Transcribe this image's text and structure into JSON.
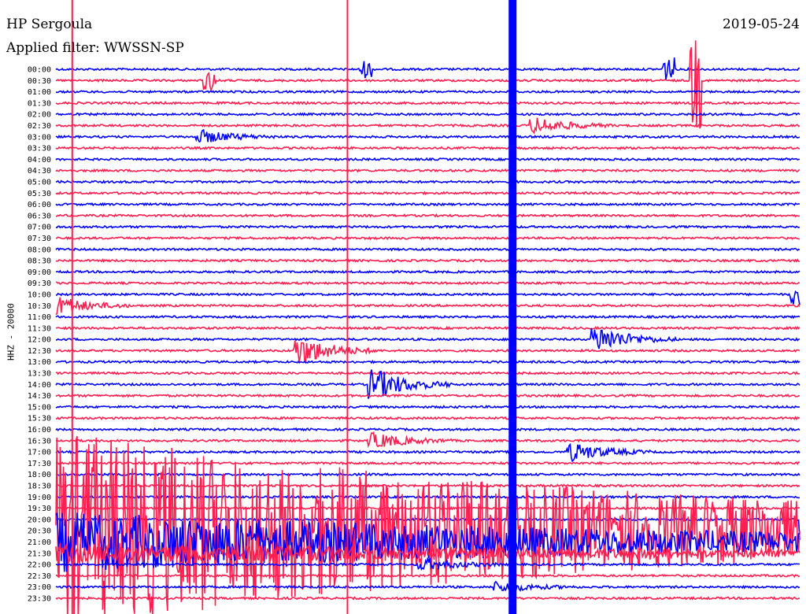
{
  "header": {
    "station": "HP Sergoula",
    "date": "2019-05-24",
    "filter": "Applied filter: WWSSN-SP"
  },
  "chart_data": {
    "type": "line",
    "title": "HP Sergoula",
    "subtitle": "Applied filter: WWSSN-SP",
    "date": "2019-05-24",
    "ylabel": "HHZ - 20000",
    "xlabel": "",
    "rows": [
      "00:00",
      "00:30",
      "01:00",
      "01:30",
      "02:00",
      "02:30",
      "03:00",
      "03:30",
      "04:00",
      "04:30",
      "05:00",
      "05:30",
      "06:00",
      "06:30",
      "07:00",
      "07:30",
      "08:00",
      "08:30",
      "09:00",
      "09:30",
      "10:00",
      "10:30",
      "11:00",
      "11:30",
      "12:00",
      "12:30",
      "13:00",
      "13:30",
      "14:00",
      "14:30",
      "15:00",
      "15:30",
      "16:00",
      "16:30",
      "17:00",
      "17:30",
      "18:00",
      "18:30",
      "19:00",
      "19:30",
      "20:00",
      "20:30",
      "21:00",
      "21:30",
      "22:00",
      "22:30",
      "23:00",
      "23:30"
    ],
    "trace_colors": [
      "#0000ff",
      "#ff1e50"
    ],
    "row_minutes": 30,
    "events": [
      {
        "minute": 12.5,
        "amp": 1.0,
        "kind": "spike"
      },
      {
        "minute": 24.7,
        "amp": 1.4,
        "kind": "spike"
      },
      {
        "minute": 36.2,
        "amp": 1.2,
        "kind": "spike"
      },
      {
        "minute": 55.8,
        "amp": 6.0,
        "kind": "spike"
      },
      {
        "minute": 169.5,
        "amp": 3.0,
        "kind": "burst"
      },
      {
        "minute": 186.0,
        "amp": 2.5,
        "kind": "burst"
      },
      {
        "minute": 630.0,
        "amp": 4.0,
        "kind": "burst"
      },
      {
        "minute": 742.0,
        "amp": 5.0,
        "kind": "burst"
      },
      {
        "minute": 760.0,
        "amp": 5.5,
        "kind": "burst"
      },
      {
        "minute": 853.0,
        "amp": 6.0,
        "kind": "burst"
      },
      {
        "minute": 1003.0,
        "amp": 3.0,
        "kind": "burst"
      },
      {
        "minute": 1041.0,
        "amp": 3.5,
        "kind": "burst"
      },
      {
        "minute": 1230.0,
        "amp": 9.0,
        "kind": "quake"
      },
      {
        "minute": 1335.0,
        "amp": 2.5,
        "kind": "burst"
      },
      {
        "minute": 1398.0,
        "amp": 2.0,
        "kind": "burst"
      }
    ],
    "vertical_lines": [
      {
        "x_fraction": 0.022,
        "color": "#ff1e50"
      },
      {
        "x_fraction": 0.392,
        "color": "#ff1e50"
      },
      {
        "x_fraction": 0.614,
        "color": "#0000ff"
      }
    ]
  }
}
